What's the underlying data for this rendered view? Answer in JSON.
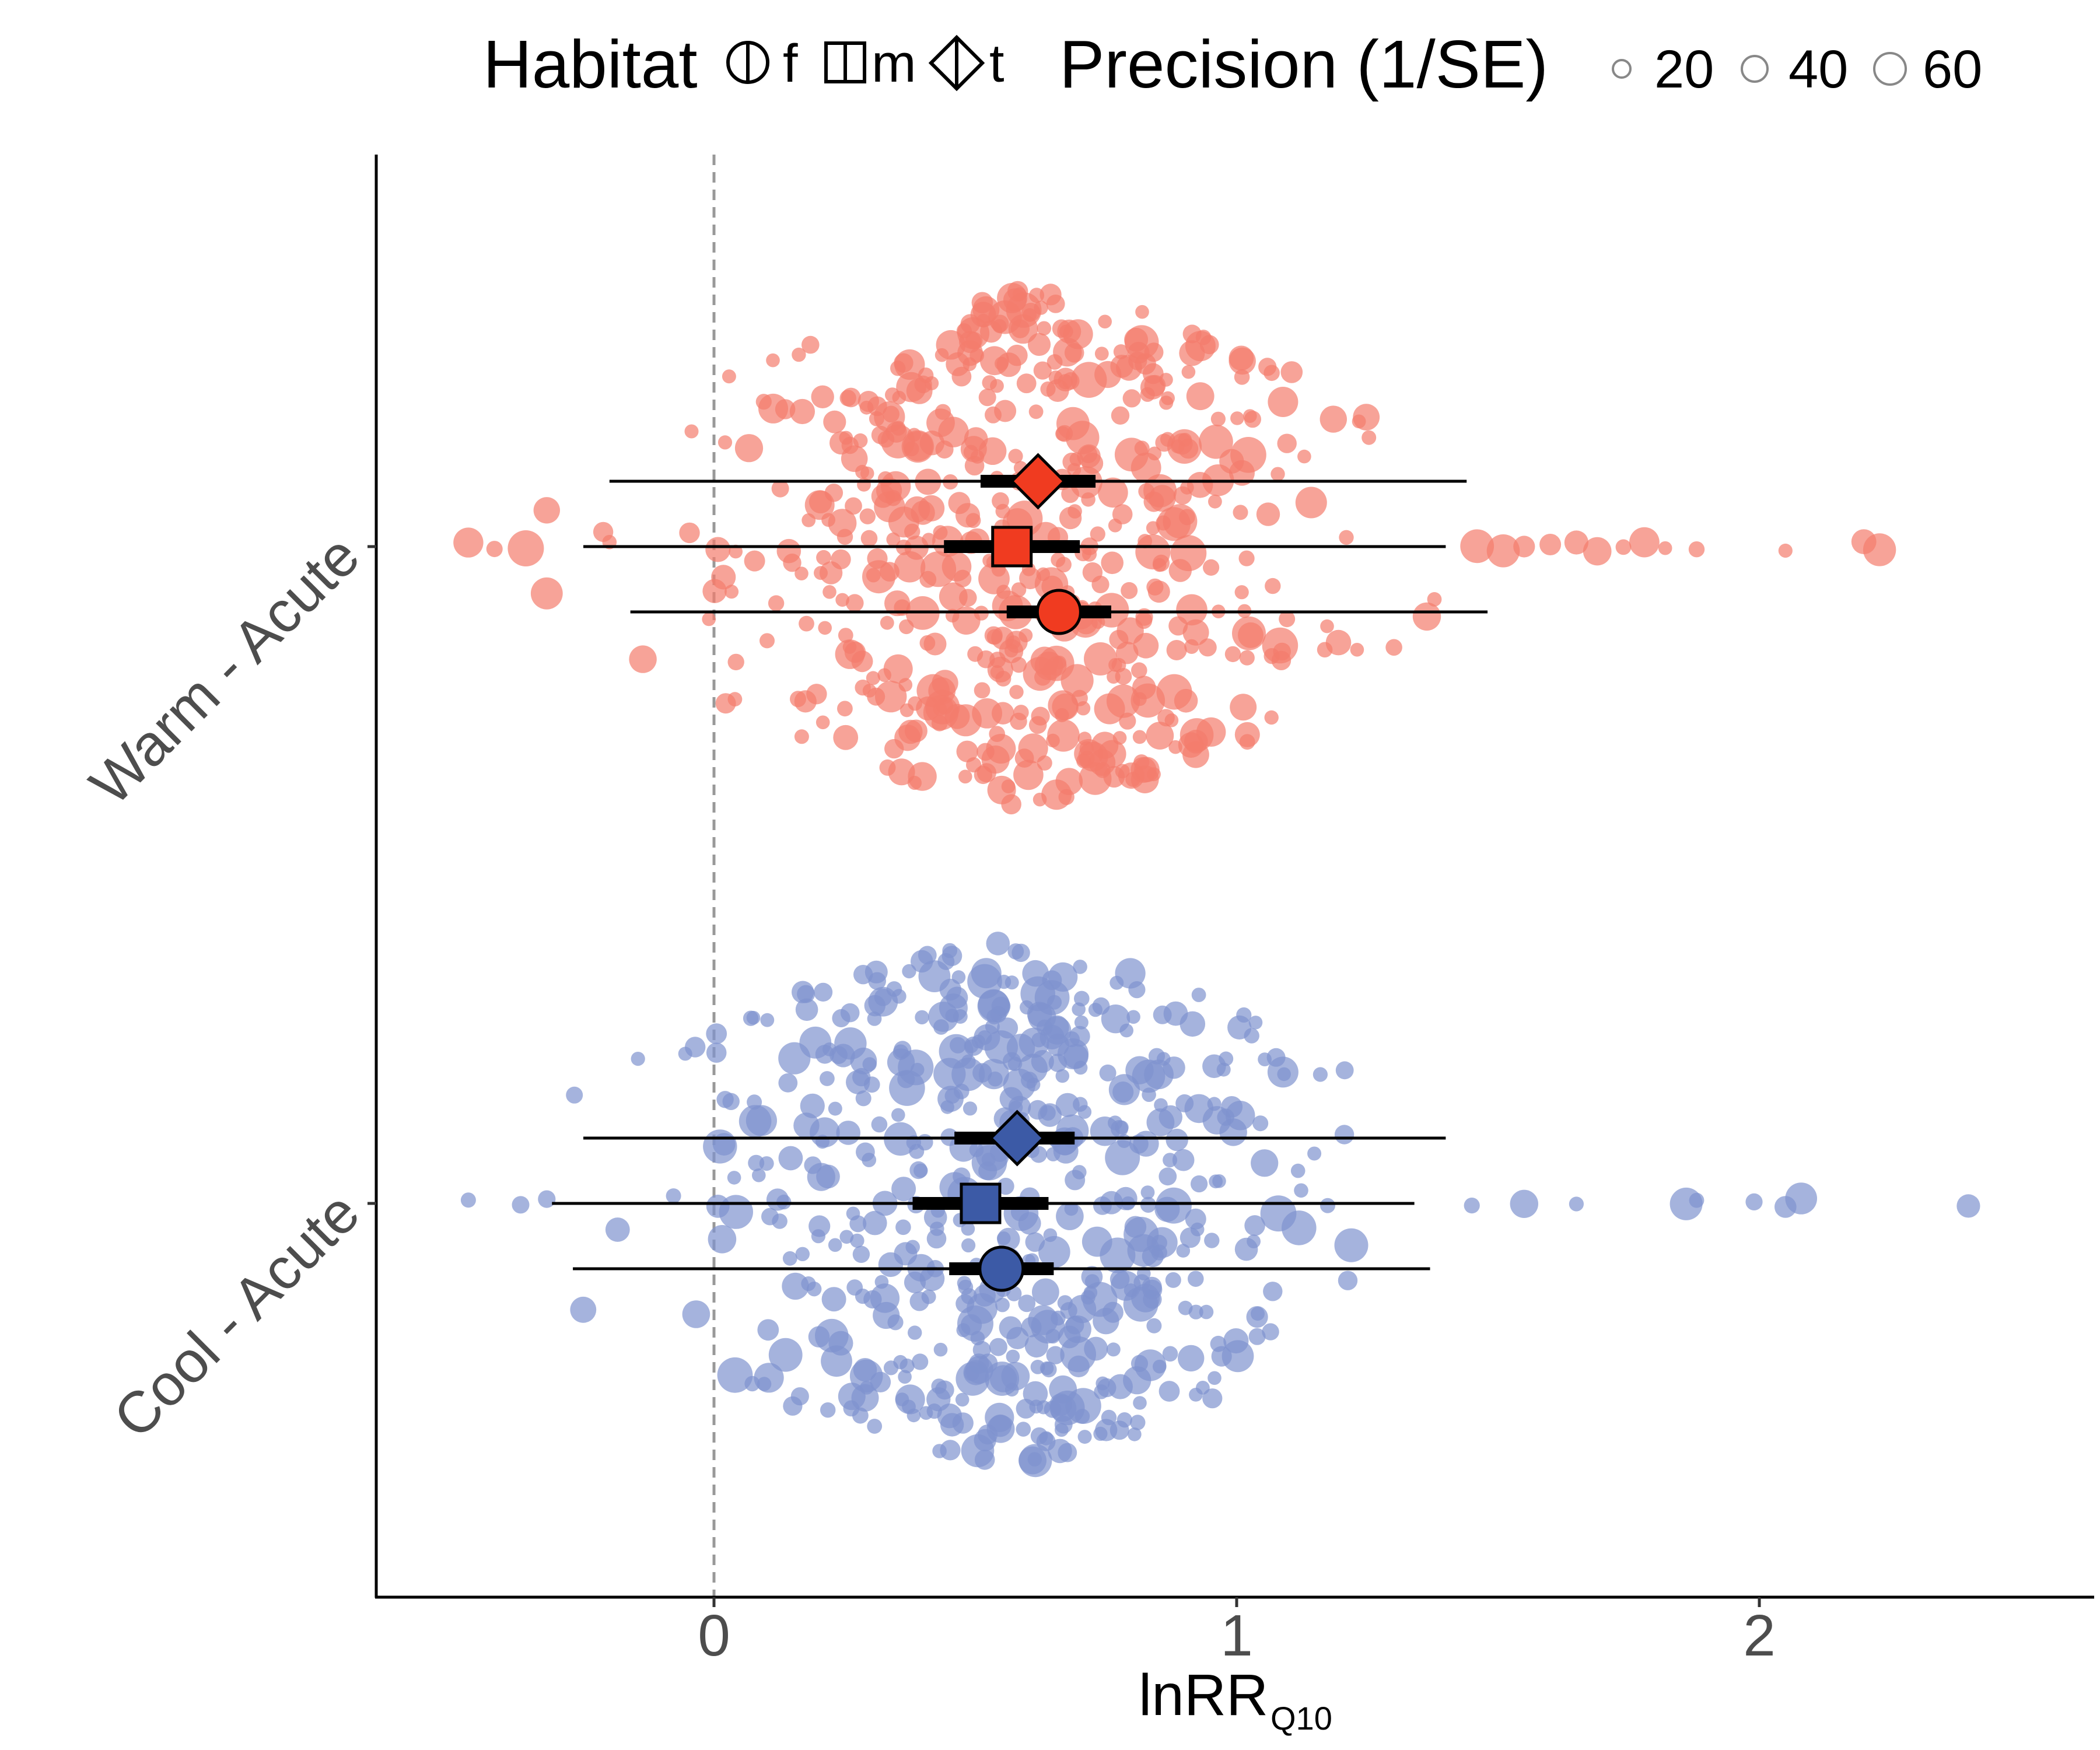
{
  "chart_data": {
    "type": "scatter",
    "subtype": "orchard plot (effect sizes with bubble size = precision, plus estimates with confidence and prediction intervals)",
    "xlabel": "lnRR",
    "xlabel_subscript": "Q10",
    "ylabel": "",
    "xlim": [
      -0.65,
      2.65
    ],
    "x_ticks": [
      0,
      1,
      2
    ],
    "x_tick_labels": [
      "0",
      "1",
      "2"
    ],
    "reference_line_x": 0,
    "grid": false,
    "legend_position": "top",
    "legend": {
      "habitat": {
        "title": "Habitat",
        "entries": [
          {
            "label": "f",
            "shape": "circle"
          },
          {
            "label": "m",
            "shape": "square"
          },
          {
            "label": "t",
            "shape": "diamond"
          }
        ]
      },
      "precision": {
        "title": "Precision (1/SE)",
        "entries": [
          "20",
          "40",
          "60"
        ]
      }
    },
    "categories": [
      "Warm - Acute",
      "Cool - Acute"
    ],
    "colors": {
      "Warm - Acute": "#f03b20",
      "Cool - Acute": "#3c5aa6",
      "Warm - Acute-points": "#f47c6c",
      "Cool - Acute-points": "#7f93cf"
    },
    "estimates": [
      {
        "group": "Warm - Acute",
        "habitat": "t",
        "estimate": 0.62,
        "ci": [
          0.51,
          0.73
        ],
        "pi": [
          -0.2,
          1.44
        ]
      },
      {
        "group": "Warm - Acute",
        "habitat": "m",
        "estimate": 0.57,
        "ci": [
          0.44,
          0.7
        ],
        "pi": [
          -0.25,
          1.4
        ]
      },
      {
        "group": "Warm - Acute",
        "habitat": "f",
        "estimate": 0.66,
        "ci": [
          0.56,
          0.76
        ],
        "pi": [
          -0.16,
          1.48
        ]
      },
      {
        "group": "Cool - Acute",
        "habitat": "t",
        "estimate": 0.58,
        "ci": [
          0.46,
          0.69
        ],
        "pi": [
          -0.25,
          1.4
        ]
      },
      {
        "group": "Cool - Acute",
        "habitat": "m",
        "estimate": 0.51,
        "ci": [
          0.38,
          0.64
        ],
        "pi": [
          -0.31,
          1.34
        ]
      },
      {
        "group": "Cool - Acute",
        "habitat": "f",
        "estimate": 0.55,
        "ci": [
          0.45,
          0.65
        ],
        "pi": [
          -0.27,
          1.37
        ]
      }
    ],
    "effect_sizes": [
      {
        "group": "Warm - Acute",
        "n_points": 560,
        "x_range": [
          -0.47,
          2.23
        ],
        "x_mean": 0.6,
        "x_sd": 0.33,
        "outliers": [
          -0.47,
          -0.42,
          -0.36,
          -0.2,
          1.46,
          1.51,
          1.55,
          1.6,
          1.65,
          1.69,
          1.74,
          1.78,
          1.82,
          1.88,
          2.05,
          2.2,
          2.23
        ],
        "precision_range": [
          5,
          60
        ]
      },
      {
        "group": "Cool - Acute",
        "n_points": 560,
        "x_range": [
          -0.47,
          2.4
        ],
        "x_mean": 0.55,
        "x_sd": 0.33,
        "outliers": [
          -0.47,
          -0.37,
          -0.32,
          1.45,
          1.55,
          1.65,
          1.86,
          1.88,
          1.99,
          2.05,
          2.08,
          2.4
        ],
        "precision_range": [
          5,
          60
        ]
      }
    ]
  }
}
